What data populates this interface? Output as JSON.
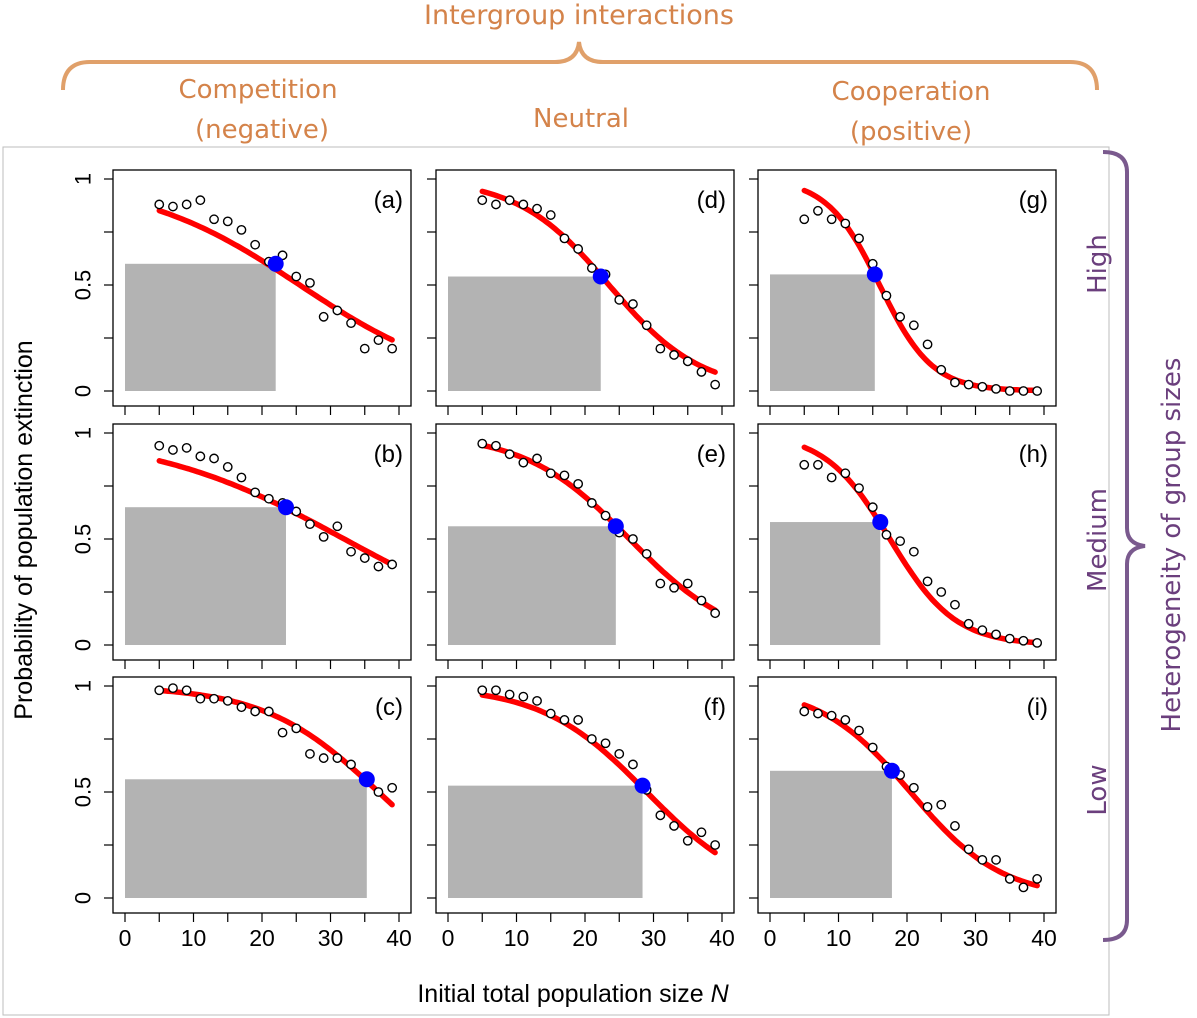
{
  "header": {
    "title": "Intergroup interactions",
    "columns": [
      {
        "line1": "Competition",
        "line2": "(negative)"
      },
      {
        "line1": "Neutral",
        "line2": ""
      },
      {
        "line1": "Cooperation",
        "line2": "(positive)"
      }
    ]
  },
  "right_side": {
    "title": "Heterogeneity of group sizes",
    "rows": [
      "High",
      "Medium",
      "Low"
    ]
  },
  "colors": {
    "header_text": "#d4834a",
    "side_text": "#6b3f7d",
    "fit_line": "#ff0000",
    "threshold_point": "#0000ff",
    "shade": "#b3b3b3"
  },
  "chart_data": {
    "type": "scatter",
    "xlabel": "Initial total population size",
    "xlabel_var": "N",
    "ylabel": "Probability of population extinction",
    "xlim": [
      0,
      40
    ],
    "ylim": [
      0,
      1
    ],
    "xticks": [
      0,
      10,
      20,
      30,
      40
    ],
    "yticks": [
      0,
      0.5,
      1
    ],
    "ytick_labels": [
      "0",
      "0.5",
      "1"
    ],
    "panels": [
      {
        "label": "(a)",
        "row": 0,
        "col": 0,
        "threshold": {
          "x": 22.0,
          "y": 0.6
        },
        "fit": {
          "x0": 5,
          "x1": 39,
          "k": 0.085,
          "n50": 25.5
        },
        "points": [
          [
            5,
            0.88
          ],
          [
            7,
            0.87
          ],
          [
            9,
            0.88
          ],
          [
            11,
            0.9
          ],
          [
            13,
            0.81
          ],
          [
            15,
            0.8
          ],
          [
            17,
            0.76
          ],
          [
            19,
            0.69
          ],
          [
            21,
            0.61
          ],
          [
            23,
            0.64
          ],
          [
            25,
            0.54
          ],
          [
            27,
            0.51
          ],
          [
            29,
            0.35
          ],
          [
            31,
            0.38
          ],
          [
            33,
            0.32
          ],
          [
            35,
            0.2
          ],
          [
            37,
            0.24
          ],
          [
            39,
            0.2
          ]
        ]
      },
      {
        "label": "(b)",
        "row": 1,
        "col": 0,
        "threshold": {
          "x": 23.5,
          "y": 0.65
        },
        "fit": {
          "x0": 5,
          "x1": 39,
          "k": 0.07,
          "n50": 32
        },
        "points": [
          [
            5,
            0.94
          ],
          [
            7,
            0.92
          ],
          [
            9,
            0.93
          ],
          [
            11,
            0.89
          ],
          [
            13,
            0.88
          ],
          [
            15,
            0.84
          ],
          [
            17,
            0.79
          ],
          [
            19,
            0.72
          ],
          [
            21,
            0.69
          ],
          [
            23,
            0.67
          ],
          [
            25,
            0.63
          ],
          [
            27,
            0.57
          ],
          [
            29,
            0.51
          ],
          [
            31,
            0.56
          ],
          [
            33,
            0.44
          ],
          [
            35,
            0.41
          ],
          [
            37,
            0.37
          ],
          [
            39,
            0.38
          ]
        ]
      },
      {
        "label": "(c)",
        "row": 2,
        "col": 0,
        "threshold": {
          "x": 35.3,
          "y": 0.56
        },
        "fit": {
          "x0": 5,
          "x1": 39,
          "k": 0.12,
          "n50": 37
        },
        "points": [
          [
            5,
            0.98
          ],
          [
            7,
            0.99
          ],
          [
            9,
            0.98
          ],
          [
            11,
            0.94
          ],
          [
            13,
            0.94
          ],
          [
            15,
            0.93
          ],
          [
            17,
            0.9
          ],
          [
            19,
            0.88
          ],
          [
            21,
            0.88
          ],
          [
            23,
            0.78
          ],
          [
            25,
            0.8
          ],
          [
            27,
            0.68
          ],
          [
            29,
            0.66
          ],
          [
            31,
            0.66
          ],
          [
            33,
            0.63
          ],
          [
            35,
            0.55
          ],
          [
            37,
            0.5
          ],
          [
            39,
            0.52
          ]
        ]
      },
      {
        "label": "(d)",
        "row": 0,
        "col": 1,
        "threshold": {
          "x": 22.3,
          "y": 0.54
        },
        "fit": {
          "x0": 5,
          "x1": 39,
          "k": 0.15,
          "n50": 23.5
        },
        "points": [
          [
            5,
            0.9
          ],
          [
            7,
            0.88
          ],
          [
            9,
            0.9
          ],
          [
            11,
            0.88
          ],
          [
            13,
            0.86
          ],
          [
            15,
            0.83
          ],
          [
            17,
            0.72
          ],
          [
            19,
            0.67
          ],
          [
            21,
            0.58
          ],
          [
            23,
            0.55
          ],
          [
            25,
            0.43
          ],
          [
            27,
            0.41
          ],
          [
            29,
            0.31
          ],
          [
            31,
            0.2
          ],
          [
            33,
            0.17
          ],
          [
            35,
            0.14
          ],
          [
            37,
            0.09
          ],
          [
            39,
            0.03
          ]
        ]
      },
      {
        "label": "(e)",
        "row": 1,
        "col": 1,
        "threshold": {
          "x": 24.5,
          "y": 0.56
        },
        "fit": {
          "x0": 5,
          "x1": 39,
          "k": 0.13,
          "n50": 26.5
        },
        "points": [
          [
            5,
            0.95
          ],
          [
            7,
            0.94
          ],
          [
            9,
            0.9
          ],
          [
            11,
            0.86
          ],
          [
            13,
            0.88
          ],
          [
            15,
            0.81
          ],
          [
            17,
            0.8
          ],
          [
            19,
            0.76
          ],
          [
            21,
            0.67
          ],
          [
            23,
            0.61
          ],
          [
            25,
            0.53
          ],
          [
            27,
            0.5
          ],
          [
            29,
            0.43
          ],
          [
            31,
            0.29
          ],
          [
            33,
            0.27
          ],
          [
            35,
            0.29
          ],
          [
            37,
            0.21
          ],
          [
            39,
            0.15
          ]
        ]
      },
      {
        "label": "(f)",
        "row": 2,
        "col": 1,
        "threshold": {
          "x": 28.4,
          "y": 0.53
        },
        "fit": {
          "x0": 5,
          "x1": 39,
          "k": 0.13,
          "n50": 29
        },
        "points": [
          [
            5,
            0.98
          ],
          [
            7,
            0.98
          ],
          [
            9,
            0.96
          ],
          [
            11,
            0.95
          ],
          [
            13,
            0.93
          ],
          [
            15,
            0.87
          ],
          [
            17,
            0.84
          ],
          [
            19,
            0.84
          ],
          [
            21,
            0.75
          ],
          [
            23,
            0.73
          ],
          [
            25,
            0.68
          ],
          [
            27,
            0.63
          ],
          [
            29,
            0.51
          ],
          [
            31,
            0.39
          ],
          [
            33,
            0.34
          ],
          [
            35,
            0.27
          ],
          [
            37,
            0.31
          ],
          [
            39,
            0.25
          ]
        ]
      },
      {
        "label": "(g)",
        "row": 0,
        "col": 2,
        "threshold": {
          "x": 15.3,
          "y": 0.55
        },
        "fit": {
          "x0": 5,
          "x1": 39,
          "k": 0.26,
          "n50": 16
        },
        "points": [
          [
            5,
            0.81
          ],
          [
            7,
            0.85
          ],
          [
            9,
            0.81
          ],
          [
            11,
            0.79
          ],
          [
            13,
            0.72
          ],
          [
            15,
            0.6
          ],
          [
            17,
            0.45
          ],
          [
            19,
            0.35
          ],
          [
            21,
            0.31
          ],
          [
            23,
            0.22
          ],
          [
            25,
            0.1
          ],
          [
            27,
            0.04
          ],
          [
            29,
            0.03
          ],
          [
            31,
            0.02
          ],
          [
            33,
            0.01
          ],
          [
            35,
            0.0
          ],
          [
            37,
            0.0
          ],
          [
            39,
            0.0
          ]
        ]
      },
      {
        "label": "(h)",
        "row": 1,
        "col": 2,
        "threshold": {
          "x": 16.1,
          "y": 0.58
        },
        "fit": {
          "x0": 5,
          "x1": 39,
          "k": 0.21,
          "n50": 17.5
        },
        "points": [
          [
            5,
            0.85
          ],
          [
            7,
            0.85
          ],
          [
            9,
            0.79
          ],
          [
            11,
            0.81
          ],
          [
            13,
            0.74
          ],
          [
            15,
            0.65
          ],
          [
            17,
            0.52
          ],
          [
            19,
            0.49
          ],
          [
            21,
            0.44
          ],
          [
            23,
            0.3
          ],
          [
            25,
            0.25
          ],
          [
            27,
            0.19
          ],
          [
            29,
            0.1
          ],
          [
            31,
            0.07
          ],
          [
            33,
            0.05
          ],
          [
            35,
            0.03
          ],
          [
            37,
            0.02
          ],
          [
            39,
            0.01
          ]
        ]
      },
      {
        "label": "(i)",
        "row": 2,
        "col": 2,
        "threshold": {
          "x": 17.8,
          "y": 0.6
        },
        "fit": {
          "x0": 5,
          "x1": 39,
          "k": 0.15,
          "n50": 20.5
        },
        "points": [
          [
            5,
            0.88
          ],
          [
            7,
            0.87
          ],
          [
            9,
            0.86
          ],
          [
            11,
            0.84
          ],
          [
            13,
            0.79
          ],
          [
            15,
            0.71
          ],
          [
            17,
            0.62
          ],
          [
            19,
            0.58
          ],
          [
            21,
            0.52
          ],
          [
            23,
            0.43
          ],
          [
            25,
            0.44
          ],
          [
            27,
            0.34
          ],
          [
            29,
            0.23
          ],
          [
            31,
            0.18
          ],
          [
            33,
            0.18
          ],
          [
            35,
            0.09
          ],
          [
            37,
            0.05
          ],
          [
            39,
            0.09
          ]
        ]
      }
    ]
  }
}
